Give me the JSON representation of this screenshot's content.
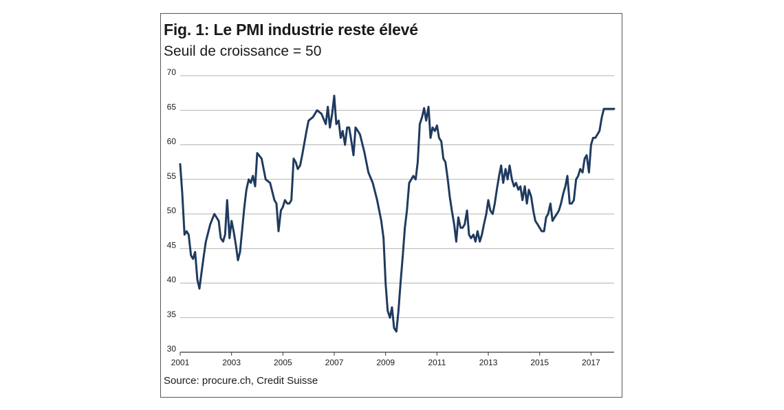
{
  "title": "Fig. 1: Le PMI industrie reste élevé",
  "subtitle": "Seuil de croissance = 50",
  "source": "Source: procure.ch, Credit Suisse",
  "colors": {
    "line": "#1f3a5f",
    "grid": "#9a9a9a",
    "axis": "#333333"
  },
  "chart_data": {
    "type": "line",
    "title": "Fig. 1: Le PMI industrie reste élevé",
    "subtitle": "Seuil de croissance = 50",
    "xlabel": "",
    "ylabel": "",
    "xlim": [
      2001,
      2017.9
    ],
    "ylim": [
      30,
      70
    ],
    "yticks": [
      30,
      35,
      40,
      45,
      50,
      55,
      60,
      65,
      70
    ],
    "xticks": [
      "2001",
      "2003",
      "2005",
      "2007",
      "2009",
      "2011",
      "2013",
      "2015",
      "2017"
    ],
    "grid": true,
    "series": [
      {
        "name": "",
        "x": [
          2001.0,
          2001.08,
          2001.17,
          2001.25,
          2001.33,
          2001.42,
          2001.5,
          2001.58,
          2001.67,
          2001.75,
          2001.83,
          2001.92,
          2002.0,
          2002.17,
          2002.33,
          2002.5,
          2002.58,
          2002.67,
          2002.75,
          2002.83,
          2002.92,
          2003.0,
          2003.08,
          2003.17,
          2003.25,
          2003.33,
          2003.42,
          2003.5,
          2003.58,
          2003.67,
          2003.75,
          2003.83,
          2003.92,
          2004.0,
          2004.17,
          2004.33,
          2004.5,
          2004.67,
          2004.75,
          2004.83,
          2004.92,
          2005.0,
          2005.08,
          2005.17,
          2005.25,
          2005.33,
          2005.42,
          2005.5,
          2005.58,
          2005.67,
          2005.75,
          2005.92,
          2006.0,
          2006.17,
          2006.33,
          2006.5,
          2006.67,
          2006.75,
          2006.83,
          2006.92,
          2007.0,
          2007.08,
          2007.17,
          2007.25,
          2007.33,
          2007.42,
          2007.5,
          2007.58,
          2007.67,
          2007.75,
          2007.83,
          2007.92,
          2008.0,
          2008.17,
          2008.33,
          2008.5,
          2008.67,
          2008.83,
          2008.92,
          2009.0,
          2009.08,
          2009.17,
          2009.25,
          2009.33,
          2009.42,
          2009.5,
          2009.58,
          2009.67,
          2009.75,
          2009.83,
          2009.92,
          2010.0,
          2010.08,
          2010.17,
          2010.25,
          2010.33,
          2010.42,
          2010.5,
          2010.58,
          2010.67,
          2010.75,
          2010.83,
          2010.92,
          2011.0,
          2011.08,
          2011.17,
          2011.25,
          2011.33,
          2011.42,
          2011.5,
          2011.58,
          2011.67,
          2011.75,
          2011.83,
          2011.92,
          2012.0,
          2012.08,
          2012.17,
          2012.25,
          2012.33,
          2012.42,
          2012.5,
          2012.58,
          2012.67,
          2012.75,
          2012.83,
          2012.92,
          2013.0,
          2013.08,
          2013.17,
          2013.25,
          2013.33,
          2013.42,
          2013.5,
          2013.58,
          2013.67,
          2013.75,
          2013.83,
          2013.92,
          2014.0,
          2014.08,
          2014.17,
          2014.25,
          2014.33,
          2014.42,
          2014.5,
          2014.58,
          2014.67,
          2014.75,
          2014.83,
          2014.92,
          2015.0,
          2015.08,
          2015.17,
          2015.25,
          2015.33,
          2015.42,
          2015.5,
          2015.58,
          2015.67,
          2015.75,
          2015.83,
          2015.92,
          2016.0,
          2016.08,
          2016.17,
          2016.25,
          2016.33,
          2016.42,
          2016.5,
          2016.58,
          2016.67,
          2016.75,
          2016.83,
          2016.92,
          2017.0,
          2017.08,
          2017.17,
          2017.25,
          2017.33,
          2017.42,
          2017.5,
          2017.58,
          2017.67,
          2017.75,
          2017.83,
          2017.9
        ],
        "y": [
          57.2,
          53.0,
          47.0,
          47.5,
          47.0,
          44.0,
          43.5,
          44.5,
          40.5,
          39.2,
          41.5,
          44.0,
          46.0,
          48.5,
          50.0,
          49.0,
          46.5,
          46.0,
          47.0,
          52.0,
          46.5,
          49.0,
          47.5,
          45.5,
          43.3,
          44.5,
          48.0,
          51.0,
          53.5,
          55.0,
          54.5,
          55.5,
          54.0,
          58.8,
          58.0,
          55.0,
          54.5,
          52.0,
          51.5,
          47.5,
          50.5,
          51.0,
          52.0,
          51.5,
          51.5,
          52.0,
          58.0,
          57.5,
          56.5,
          57.0,
          58.5,
          62.0,
          63.5,
          64.0,
          65.0,
          64.5,
          63.0,
          65.5,
          62.5,
          64.5,
          67.1,
          63.0,
          63.5,
          61.0,
          62.0,
          60.0,
          62.5,
          62.5,
          60.5,
          58.5,
          62.5,
          62.0,
          61.5,
          59.0,
          56.0,
          54.5,
          52.0,
          49.0,
          46.5,
          40.0,
          36.0,
          35.0,
          36.5,
          33.5,
          33.0,
          36.0,
          40.0,
          44.0,
          48.0,
          50.5,
          54.5,
          55.0,
          55.5,
          55.0,
          57.5,
          63.0,
          64.0,
          65.3,
          63.5,
          65.5,
          61.0,
          62.5,
          62.0,
          62.8,
          61.0,
          60.5,
          58.0,
          57.5,
          55.0,
          52.5,
          50.5,
          48.5,
          46.0,
          49.5,
          48.0,
          48.0,
          48.5,
          50.5,
          47.0,
          46.5,
          47.0,
          46.0,
          47.5,
          46.0,
          47.0,
          48.5,
          50.0,
          52.0,
          50.5,
          50.0,
          51.5,
          53.5,
          55.5,
          57.0,
          54.5,
          56.5,
          55.0,
          57.0,
          55.0,
          54.0,
          54.5,
          53.5,
          54.0,
          52.0,
          54.0,
          51.5,
          53.5,
          52.5,
          50.5,
          49.0,
          48.5,
          48.0,
          47.5,
          47.5,
          49.5,
          50.0,
          51.5,
          49.0,
          49.5,
          50.0,
          50.5,
          51.5,
          53.0,
          54.0,
          55.5,
          51.5,
          51.5,
          52.0,
          55.0,
          55.5,
          56.5,
          56.0,
          58.0,
          58.5,
          56.0,
          60.0,
          61.0,
          61.0,
          61.5,
          62.0,
          64.0,
          65.2,
          65.2,
          65.2,
          65.2,
          65.2,
          65.2
        ]
      }
    ]
  }
}
